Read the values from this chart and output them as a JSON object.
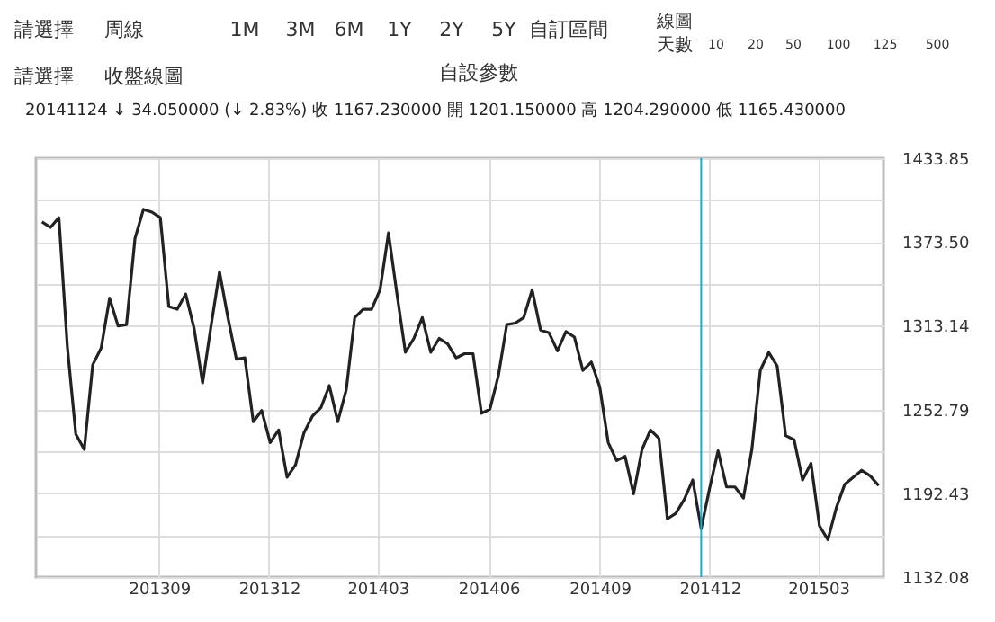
{
  "chart_data": {
    "type": "line",
    "title": "20141124 ↓ 34.050000 (↓ 2.83%)    收 1167.230000    開 1201.150000    高 1204.290000    低 1165.430000",
    "annotations": [
      "請選擇",
      "周線",
      "1M",
      "3M",
      "6M",
      "1Y",
      "2Y",
      "5Y",
      "自訂區間",
      "線圖",
      "天數",
      "10",
      "20",
      "50",
      "100",
      "125",
      "500",
      "請選擇",
      "收盤線圖",
      "自設參數"
    ],
    "x": [
      "2013-05-27",
      "2013-06-03",
      "2013-06-10",
      "2013-06-17",
      "2013-06-24",
      "2013-07-01",
      "2013-07-08",
      "2013-07-15",
      "2013-07-22",
      "2013-07-29",
      "2013-08-05",
      "2013-08-12",
      "2013-08-19",
      "2013-08-26",
      "2013-09-02",
      "2013-09-09",
      "2013-09-16",
      "2013-09-23",
      "2013-09-30",
      "2013-10-07",
      "2013-10-14",
      "2013-10-21",
      "2013-10-28",
      "2013-11-04",
      "2013-11-11",
      "2013-11-18",
      "2013-11-25",
      "2013-12-02",
      "2013-12-09",
      "2013-12-16",
      "2013-12-23",
      "2013-12-30",
      "2014-01-06",
      "2014-01-13",
      "2014-01-20",
      "2014-01-27",
      "2014-02-03",
      "2014-02-10",
      "2014-02-17",
      "2014-02-24",
      "2014-03-03",
      "2014-03-10",
      "2014-03-17",
      "2014-03-24",
      "2014-03-31",
      "2014-04-07",
      "2014-04-14",
      "2014-04-21",
      "2014-04-28",
      "2014-05-05",
      "2014-05-12",
      "2014-05-19",
      "2014-05-26",
      "2014-06-02",
      "2014-06-09",
      "2014-06-16",
      "2014-06-23",
      "2014-06-30",
      "2014-07-07",
      "2014-07-14",
      "2014-07-21",
      "2014-07-28",
      "2014-08-04",
      "2014-08-11",
      "2014-08-18",
      "2014-08-25",
      "2014-09-01",
      "2014-09-08",
      "2014-09-15",
      "2014-09-22",
      "2014-09-29",
      "2014-10-06",
      "2014-10-13",
      "2014-10-20",
      "2014-10-27",
      "2014-11-03",
      "2014-11-10",
      "2014-11-17",
      "2014-11-24",
      "2014-12-01",
      "2014-12-08",
      "2014-12-15",
      "2014-12-22",
      "2014-12-29",
      "2015-01-05",
      "2015-01-12",
      "2015-01-19",
      "2015-01-26",
      "2015-02-02",
      "2015-02-09",
      "2015-02-16",
      "2015-02-23",
      "2015-03-02",
      "2015-03-09",
      "2015-03-16",
      "2015-03-23",
      "2015-03-30",
      "2015-04-06",
      "2015-04-13",
      "2015-04-20"
    ],
    "series": [
      {
        "color": "#222222",
        "values": [
          1388,
          1384,
          1391,
          1298,
          1235,
          1224,
          1285,
          1297,
          1333,
          1313,
          1314,
          1376,
          1397,
          1395,
          1391,
          1327,
          1325,
          1336,
          1311,
          1272,
          1313,
          1352,
          1319,
          1289,
          1290,
          1244,
          1252,
          1229,
          1238,
          1204,
          1213,
          1236,
          1248,
          1254,
          1270,
          1244,
          1267,
          1319,
          1325,
          1325,
          1339,
          1380,
          1336,
          1294,
          1304,
          1319,
          1294,
          1304,
          1300,
          1290,
          1293,
          1293,
          1250,
          1253,
          1277,
          1314,
          1315,
          1319,
          1339,
          1310,
          1308,
          1295,
          1309,
          1305,
          1281,
          1287,
          1269,
          1229,
          1216,
          1219,
          1192,
          1224,
          1238,
          1232,
          1174,
          1178,
          1188,
          1202,
          1167,
          1196,
          1223,
          1197,
          1197,
          1189,
          1224,
          1281,
          1294,
          1284,
          1234,
          1231,
          1202,
          1214,
          1169,
          1159,
          1182,
          1199,
          1204,
          1209,
          1205,
          1198
        ]
      }
    ],
    "xlim": [
      "2013-05-22",
      "2015-04-24"
    ],
    "xticks": [
      {
        "value": "2013-09-01",
        "label": "201309"
      },
      {
        "value": "2013-12-01",
        "label": "201312"
      },
      {
        "value": "2014-03-01",
        "label": "201403"
      },
      {
        "value": "2014-06-01",
        "label": "201406"
      },
      {
        "value": "2014-09-01",
        "label": "201409"
      },
      {
        "value": "2014-12-01",
        "label": "201412"
      },
      {
        "value": "2015-03-01",
        "label": "201503"
      }
    ],
    "ylim": [
      1132.08,
      1433.85
    ],
    "yticks": [
      1132.08,
      {
        "value": 1162.255,
        "label": null
      },
      1192.43,
      {
        "value": 1222.61,
        "label": null
      },
      1252.79,
      {
        "value": 1282.965,
        "label": null
      },
      1313.14,
      {
        "value": 1343.32,
        "label": null
      },
      {
        "value": 1373.5,
        "label": "1373.50"
      },
      {
        "value": 1403.675,
        "label": null
      },
      1433.85
    ],
    "ref_lines": [
      {
        "axis": "x",
        "value": "2014-11-24",
        "color": "#1eaac8"
      }
    ],
    "grid": true,
    "marker": "none",
    "line_style": "solid"
  }
}
